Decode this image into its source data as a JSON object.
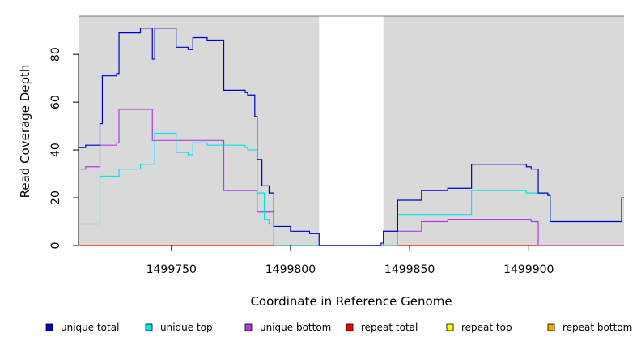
{
  "chart_data": {
    "type": "line",
    "title": "",
    "xlabel": "Coordinate in Reference Genome",
    "ylabel": "Read Coverage Depth",
    "xlim": [
      1499711,
      1499940
    ],
    "ylim": [
      0,
      96
    ],
    "x_ticks": [
      1499750,
      1499800,
      1499850,
      1499900
    ],
    "x_tick_labels": [
      "1499750",
      "1499800",
      "1499850",
      "1499900"
    ],
    "y_ticks": [
      0,
      20,
      40,
      60,
      80
    ],
    "y_tick_labels": [
      "0",
      "20",
      "40",
      "60",
      "80"
    ],
    "grid": false,
    "background": "#d9d9d9",
    "gap_regions": [
      [
        1499812,
        1499839
      ]
    ],
    "legend_position": "bottom",
    "series": [
      {
        "name": "unique total",
        "color": "#0000cd",
        "points": [
          [
            1499711,
            41
          ],
          [
            1499714,
            42
          ],
          [
            1499720,
            51
          ],
          [
            1499721,
            71
          ],
          [
            1499727,
            72
          ],
          [
            1499728,
            89
          ],
          [
            1499737,
            91
          ],
          [
            1499742,
            78
          ],
          [
            1499743,
            91
          ],
          [
            1499752,
            83
          ],
          [
            1499757,
            82
          ],
          [
            1499759,
            87
          ],
          [
            1499765,
            86
          ],
          [
            1499772,
            65
          ],
          [
            1499781,
            64
          ],
          [
            1499782,
            63
          ],
          [
            1499785,
            54
          ],
          [
            1499786,
            36
          ],
          [
            1499788,
            25
          ],
          [
            1499791,
            22
          ],
          [
            1499793,
            8
          ],
          [
            1499800,
            6
          ],
          [
            1499808,
            5
          ],
          [
            1499812,
            0
          ],
          [
            1499834,
            0
          ],
          [
            1499838,
            1
          ],
          [
            1499839,
            6
          ],
          [
            1499845,
            19
          ],
          [
            1499855,
            23
          ],
          [
            1499866,
            24
          ],
          [
            1499876,
            34
          ],
          [
            1499899,
            33
          ],
          [
            1499901,
            32
          ],
          [
            1499904,
            22
          ],
          [
            1499908,
            21
          ],
          [
            1499909,
            10
          ],
          [
            1499939,
            20
          ]
        ]
      },
      {
        "name": "unique top",
        "color": "#00e5ee",
        "points": [
          [
            1499711,
            9
          ],
          [
            1499720,
            29
          ],
          [
            1499728,
            32
          ],
          [
            1499737,
            34
          ],
          [
            1499743,
            47
          ],
          [
            1499752,
            39
          ],
          [
            1499757,
            38
          ],
          [
            1499759,
            43
          ],
          [
            1499765,
            42
          ],
          [
            1499781,
            41
          ],
          [
            1499782,
            40
          ],
          [
            1499786,
            22
          ],
          [
            1499789,
            11
          ],
          [
            1499791,
            9
          ],
          [
            1499793,
            0
          ],
          [
            1499845,
            13
          ],
          [
            1499876,
            23
          ],
          [
            1499899,
            22
          ],
          [
            1499908,
            21
          ],
          [
            1499909,
            10
          ],
          [
            1499939,
            20
          ]
        ]
      },
      {
        "name": "unique bottom",
        "color": "#b23aee",
        "points": [
          [
            1499711,
            32
          ],
          [
            1499714,
            33
          ],
          [
            1499720,
            42
          ],
          [
            1499727,
            43
          ],
          [
            1499728,
            57
          ],
          [
            1499742,
            44
          ],
          [
            1499772,
            23
          ],
          [
            1499786,
            14
          ],
          [
            1499793,
            0
          ],
          [
            1499839,
            6
          ],
          [
            1499845,
            6
          ],
          [
            1499855,
            10
          ],
          [
            1499866,
            11
          ],
          [
            1499901,
            10
          ],
          [
            1499904,
            0
          ],
          [
            1499939,
            0
          ]
        ]
      },
      {
        "name": "repeat total",
        "color": "#ff0000",
        "points": [
          [
            1499711,
            0
          ],
          [
            1499939,
            0
          ]
        ]
      },
      {
        "name": "repeat top",
        "color": "#ffff00",
        "points": [
          [
            1499711,
            0
          ],
          [
            1499939,
            0
          ]
        ]
      },
      {
        "name": "repeat bottom",
        "color": "#ffa500",
        "points": [
          [
            1499711,
            0
          ],
          [
            1499939,
            0
          ]
        ]
      }
    ]
  }
}
